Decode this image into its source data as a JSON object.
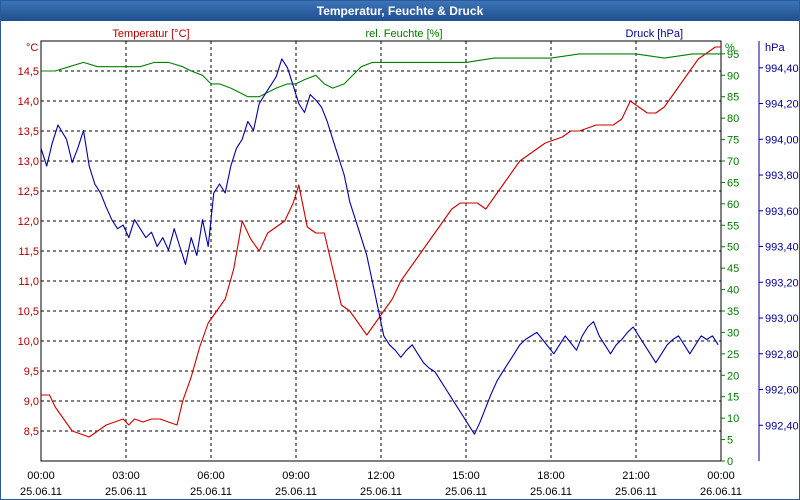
{
  "window": {
    "title": "Temperatur, Feuchte & Druck"
  },
  "chart_data": {
    "type": "line",
    "title": "Temperatur, Feuchte & Druck",
    "axes": {
      "temperature": {
        "label": "Temperatur [°C]",
        "unit": "°C",
        "min": 8.0,
        "max": 15.0,
        "ticks": [
          "8,5",
          "9,0",
          "9,5",
          "10,0",
          "10,5",
          "11,0",
          "11,5",
          "12,0",
          "12,5",
          "13,0",
          "13,5",
          "14,0",
          "14,5"
        ],
        "color": "#b00000"
      },
      "humidity": {
        "label": "rel. Feuchte [%]",
        "unit": "%",
        "min": 0,
        "max": 98,
        "ticks": [
          "0",
          "5",
          "10",
          "15",
          "20",
          "25",
          "30",
          "35",
          "40",
          "45",
          "50",
          "55",
          "60",
          "65",
          "70",
          "75",
          "80",
          "85",
          "90",
          "95"
        ],
        "color": "#007a00"
      },
      "pressure": {
        "label": "Druck [hPa]",
        "unit": "hPa",
        "min": 992.2,
        "max": 994.55,
        "ticks": [
          "992,40",
          "992,60",
          "992,80",
          "993,00",
          "993,20",
          "993,40",
          "993,60",
          "993,80",
          "994,00",
          "994,20",
          "994,40"
        ],
        "color": "#000090"
      }
    },
    "x_axis": {
      "hour_labels": [
        "00:00",
        "03:00",
        "06:00",
        "09:00",
        "12:00",
        "15:00",
        "18:00",
        "21:00",
        "00:00"
      ],
      "date_labels": [
        "25.06.11",
        "25.06.11",
        "25.06.11",
        "25.06.11",
        "25.06.11",
        "25.06.11",
        "25.06.11",
        "25.06.11",
        "26.06.11"
      ],
      "range_hours": [
        0,
        24
      ]
    },
    "grid": true,
    "series": [
      {
        "name": "Temperatur",
        "axis": "temperature",
        "color": "#cc0000",
        "x": [
          0,
          0.3,
          0.5,
          0.8,
          1.1,
          1.4,
          1.7,
          2.0,
          2.3,
          2.6,
          2.9,
          3.1,
          3.3,
          3.6,
          3.9,
          4.2,
          4.5,
          4.8,
          5.0,
          5.3,
          5.6,
          5.9,
          6.2,
          6.5,
          6.8,
          7.1,
          7.4,
          7.7,
          8.0,
          8.3,
          8.6,
          8.9,
          9.1,
          9.4,
          9.7,
          10.0,
          10.3,
          10.6,
          10.9,
          11.2,
          11.5,
          11.8,
          12.1,
          12.4,
          12.7,
          13.0,
          13.3,
          13.6,
          13.9,
          14.2,
          14.5,
          14.8,
          15.1,
          15.4,
          15.7,
          16.0,
          16.3,
          16.6,
          16.9,
          17.2,
          17.5,
          17.8,
          18.1,
          18.4,
          18.7,
          19.0,
          19.3,
          19.6,
          19.9,
          20.2,
          20.5,
          20.8,
          21.1,
          21.4,
          21.7,
          22.0,
          22.3,
          22.6,
          22.9,
          23.2,
          23.5,
          23.8,
          24.0
        ],
        "y": [
          9.1,
          9.1,
          8.9,
          8.7,
          8.5,
          8.45,
          8.4,
          8.5,
          8.6,
          8.65,
          8.7,
          8.6,
          8.7,
          8.65,
          8.7,
          8.7,
          8.65,
          8.6,
          9.0,
          9.4,
          9.9,
          10.3,
          10.5,
          10.7,
          11.2,
          12.0,
          11.7,
          11.5,
          11.8,
          11.9,
          12.0,
          12.3,
          12.6,
          11.9,
          11.8,
          11.8,
          11.2,
          10.6,
          10.5,
          10.3,
          10.1,
          10.3,
          10.5,
          10.7,
          11.0,
          11.2,
          11.4,
          11.6,
          11.8,
          12.0,
          12.2,
          12.3,
          12.3,
          12.3,
          12.2,
          12.4,
          12.6,
          12.8,
          13.0,
          13.1,
          13.2,
          13.3,
          13.35,
          13.4,
          13.5,
          13.5,
          13.55,
          13.6,
          13.6,
          13.6,
          13.7,
          14.0,
          13.9,
          13.8,
          13.8,
          13.9,
          14.1,
          14.3,
          14.5,
          14.7,
          14.8,
          14.9,
          14.9
        ]
      },
      {
        "name": "rel. Feuchte",
        "axis": "humidity",
        "color": "#008000",
        "x": [
          0,
          0.5,
          1.0,
          1.5,
          2.0,
          2.5,
          3.0,
          3.5,
          4.0,
          4.5,
          5.0,
          5.3,
          5.7,
          6.0,
          6.3,
          6.7,
          7.0,
          7.3,
          7.7,
          8.0,
          8.3,
          8.7,
          9.0,
          9.3,
          9.7,
          10.0,
          10.3,
          10.7,
          11.0,
          11.3,
          11.7,
          12.0,
          13.0,
          14.0,
          15.0,
          16.0,
          17.0,
          18.0,
          19.0,
          20.0,
          21.0,
          22.0,
          23.0,
          24.0
        ],
        "y": [
          91,
          91,
          92,
          93,
          92,
          92,
          92,
          92,
          93,
          93,
          92,
          91,
          90,
          88,
          88,
          87,
          86,
          85,
          85,
          86,
          87,
          88,
          88,
          89,
          90,
          88,
          87,
          88,
          90,
          92,
          93,
          93,
          93,
          93,
          93,
          94,
          94,
          94,
          95,
          95,
          95,
          94,
          95,
          95
        ]
      },
      {
        "name": "Druck",
        "axis": "pressure",
        "color": "#0000aa",
        "x": [
          0,
          0.2,
          0.4,
          0.6,
          0.9,
          1.1,
          1.3,
          1.5,
          1.7,
          1.9,
          2.1,
          2.3,
          2.5,
          2.7,
          2.9,
          3.1,
          3.3,
          3.5,
          3.7,
          3.9,
          4.1,
          4.3,
          4.5,
          4.7,
          4.9,
          5.1,
          5.3,
          5.5,
          5.7,
          5.9,
          6.1,
          6.3,
          6.5,
          6.7,
          6.9,
          7.1,
          7.3,
          7.5,
          7.7,
          7.9,
          8.1,
          8.3,
          8.5,
          8.7,
          8.9,
          9.1,
          9.3,
          9.5,
          9.7,
          9.9,
          10.1,
          10.3,
          10.5,
          10.7,
          10.9,
          11.1,
          11.3,
          11.5,
          11.7,
          11.9,
          12.1,
          12.3,
          12.5,
          12.7,
          12.9,
          13.1,
          13.3,
          13.5,
          13.7,
          13.9,
          14.1,
          14.3,
          14.5,
          14.7,
          14.9,
          15.1,
          15.3,
          15.5,
          15.7,
          15.9,
          16.1,
          16.3,
          16.5,
          16.7,
          16.9,
          17.1,
          17.3,
          17.5,
          17.7,
          17.9,
          18.1,
          18.3,
          18.5,
          18.7,
          18.9,
          19.1,
          19.3,
          19.5,
          19.7,
          19.9,
          20.1,
          20.3,
          20.5,
          20.7,
          20.9,
          21.1,
          21.3,
          21.5,
          21.7,
          21.9,
          22.1,
          22.3,
          22.5,
          22.7,
          22.9,
          23.1,
          23.3,
          23.5,
          23.7,
          23.9
        ],
        "y": [
          993.95,
          993.85,
          993.98,
          994.08,
          994.0,
          993.87,
          993.95,
          994.05,
          993.85,
          993.75,
          993.7,
          993.62,
          993.55,
          993.5,
          993.52,
          993.45,
          993.55,
          993.5,
          993.45,
          993.48,
          993.4,
          993.45,
          993.38,
          993.5,
          993.4,
          993.3,
          993.45,
          993.35,
          993.55,
          993.4,
          993.7,
          993.75,
          993.7,
          993.85,
          993.95,
          994.0,
          994.1,
          994.05,
          994.2,
          994.25,
          994.3,
          994.35,
          994.45,
          994.4,
          994.3,
          994.2,
          994.15,
          994.25,
          994.22,
          994.18,
          994.1,
          994.0,
          993.9,
          993.8,
          993.65,
          993.55,
          993.45,
          993.35,
          993.2,
          993.05,
          992.9,
          992.85,
          992.82,
          992.78,
          992.82,
          992.85,
          992.8,
          992.75,
          992.72,
          992.7,
          992.65,
          992.6,
          992.55,
          992.5,
          992.45,
          992.4,
          992.35,
          992.42,
          992.5,
          992.58,
          992.65,
          992.7,
          992.75,
          992.8,
          992.85,
          992.88,
          992.9,
          992.92,
          992.88,
          992.84,
          992.8,
          992.85,
          992.9,
          992.86,
          992.82,
          992.9,
          992.95,
          992.98,
          992.9,
          992.85,
          992.8,
          992.85,
          992.88,
          992.92,
          992.95,
          992.9,
          992.85,
          992.8,
          992.75,
          992.8,
          992.85,
          992.88,
          992.9,
          992.85,
          992.8,
          992.85,
          992.9,
          992.88,
          992.9,
          992.85
        ]
      }
    ]
  }
}
